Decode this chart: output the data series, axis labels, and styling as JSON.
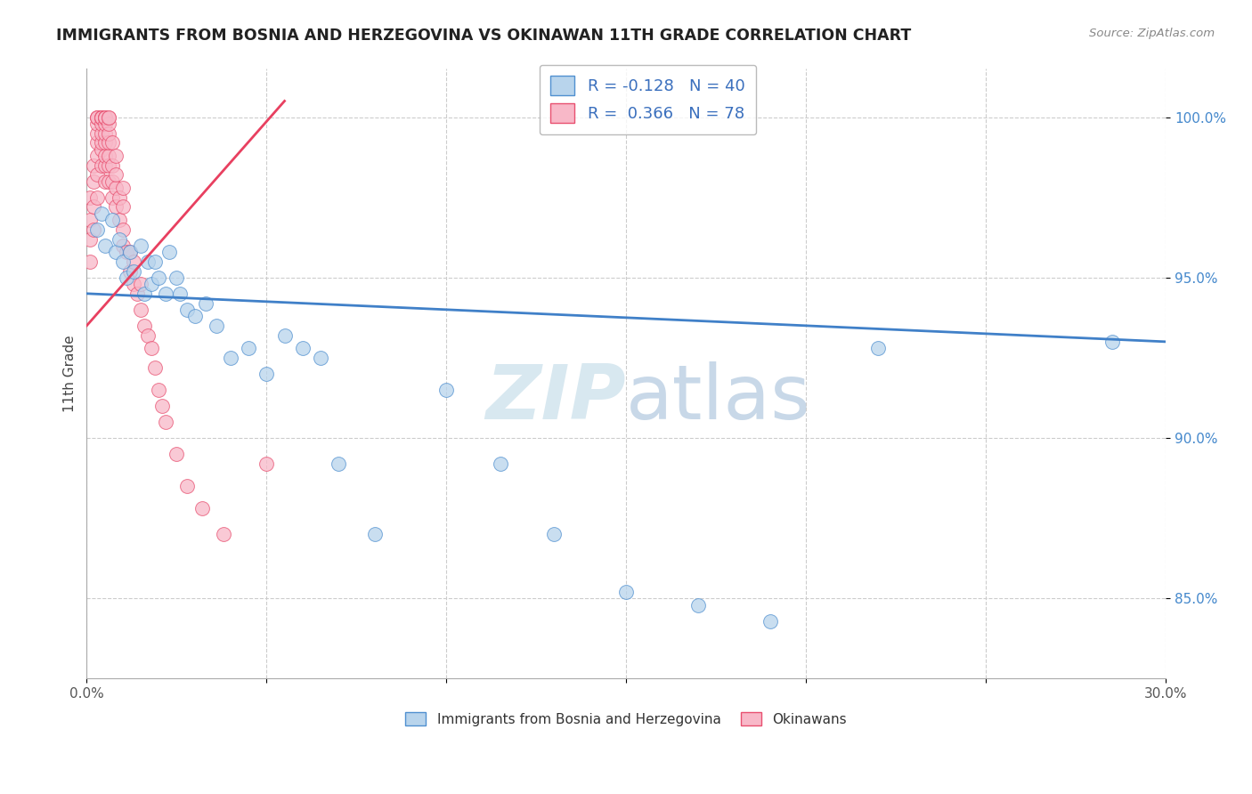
{
  "title": "IMMIGRANTS FROM BOSNIA AND HERZEGOVINA VS OKINAWAN 11TH GRADE CORRELATION CHART",
  "source": "Source: ZipAtlas.com",
  "ylabel": "11th Grade",
  "y_tick_vals": [
    0.85,
    0.9,
    0.95,
    1.0
  ],
  "y_tick_labels": [
    "85.0%",
    "90.0%",
    "95.0%",
    "100.0%"
  ],
  "xlim": [
    0.0,
    0.3
  ],
  "ylim": [
    0.825,
    1.015
  ],
  "legend_blue_r": "R = -0.128",
  "legend_blue_n": "N = 40",
  "legend_pink_r": "R =  0.366",
  "legend_pink_n": "N = 78",
  "blue_color": "#b8d4ec",
  "pink_color": "#f8b8c8",
  "blue_edge_color": "#5090d0",
  "pink_edge_color": "#e85070",
  "blue_line_color": "#4080c8",
  "pink_line_color": "#e84060",
  "blue_trend_x": [
    0.0,
    0.3
  ],
  "blue_trend_y": [
    0.945,
    0.93
  ],
  "pink_trend_x": [
    0.0,
    0.055
  ],
  "pink_trend_y": [
    0.935,
    1.005
  ],
  "blue_scatter_x": [
    0.003,
    0.004,
    0.005,
    0.007,
    0.008,
    0.009,
    0.01,
    0.011,
    0.012,
    0.013,
    0.015,
    0.016,
    0.017,
    0.018,
    0.019,
    0.02,
    0.022,
    0.023,
    0.025,
    0.026,
    0.028,
    0.03,
    0.033,
    0.036,
    0.04,
    0.045,
    0.05,
    0.055,
    0.06,
    0.065,
    0.07,
    0.08,
    0.1,
    0.115,
    0.13,
    0.15,
    0.17,
    0.19,
    0.22,
    0.285
  ],
  "blue_scatter_y": [
    0.965,
    0.97,
    0.96,
    0.968,
    0.958,
    0.962,
    0.955,
    0.95,
    0.958,
    0.952,
    0.96,
    0.945,
    0.955,
    0.948,
    0.955,
    0.95,
    0.945,
    0.958,
    0.95,
    0.945,
    0.94,
    0.938,
    0.942,
    0.935,
    0.925,
    0.928,
    0.92,
    0.932,
    0.928,
    0.925,
    0.892,
    0.87,
    0.915,
    0.892,
    0.87,
    0.852,
    0.848,
    0.843,
    0.928,
    0.93
  ],
  "pink_scatter_x": [
    0.001,
    0.001,
    0.001,
    0.001,
    0.002,
    0.002,
    0.002,
    0.002,
    0.003,
    0.003,
    0.003,
    0.003,
    0.003,
    0.003,
    0.003,
    0.003,
    0.003,
    0.004,
    0.004,
    0.004,
    0.004,
    0.004,
    0.004,
    0.004,
    0.004,
    0.004,
    0.005,
    0.005,
    0.005,
    0.005,
    0.005,
    0.005,
    0.005,
    0.005,
    0.005,
    0.005,
    0.006,
    0.006,
    0.006,
    0.006,
    0.006,
    0.006,
    0.006,
    0.006,
    0.007,
    0.007,
    0.007,
    0.007,
    0.008,
    0.008,
    0.008,
    0.008,
    0.009,
    0.009,
    0.01,
    0.01,
    0.01,
    0.01,
    0.011,
    0.012,
    0.012,
    0.013,
    0.013,
    0.014,
    0.015,
    0.015,
    0.016,
    0.017,
    0.018,
    0.019,
    0.02,
    0.021,
    0.022,
    0.025,
    0.028,
    0.032,
    0.038,
    0.05
  ],
  "pink_scatter_y": [
    0.955,
    0.962,
    0.968,
    0.975,
    0.965,
    0.972,
    0.98,
    0.985,
    0.975,
    0.982,
    0.988,
    0.992,
    0.995,
    0.998,
    1.0,
    1.0,
    1.0,
    0.985,
    0.99,
    0.992,
    0.995,
    0.998,
    1.0,
    1.0,
    1.0,
    1.0,
    0.98,
    0.985,
    0.988,
    0.992,
    0.995,
    0.998,
    1.0,
    1.0,
    1.0,
    1.0,
    0.98,
    0.985,
    0.988,
    0.992,
    0.995,
    0.998,
    1.0,
    1.0,
    0.975,
    0.98,
    0.985,
    0.992,
    0.972,
    0.978,
    0.982,
    0.988,
    0.968,
    0.975,
    0.96,
    0.965,
    0.972,
    0.978,
    0.958,
    0.952,
    0.958,
    0.948,
    0.955,
    0.945,
    0.94,
    0.948,
    0.935,
    0.932,
    0.928,
    0.922,
    0.915,
    0.91,
    0.905,
    0.895,
    0.885,
    0.878,
    0.87,
    0.892
  ]
}
